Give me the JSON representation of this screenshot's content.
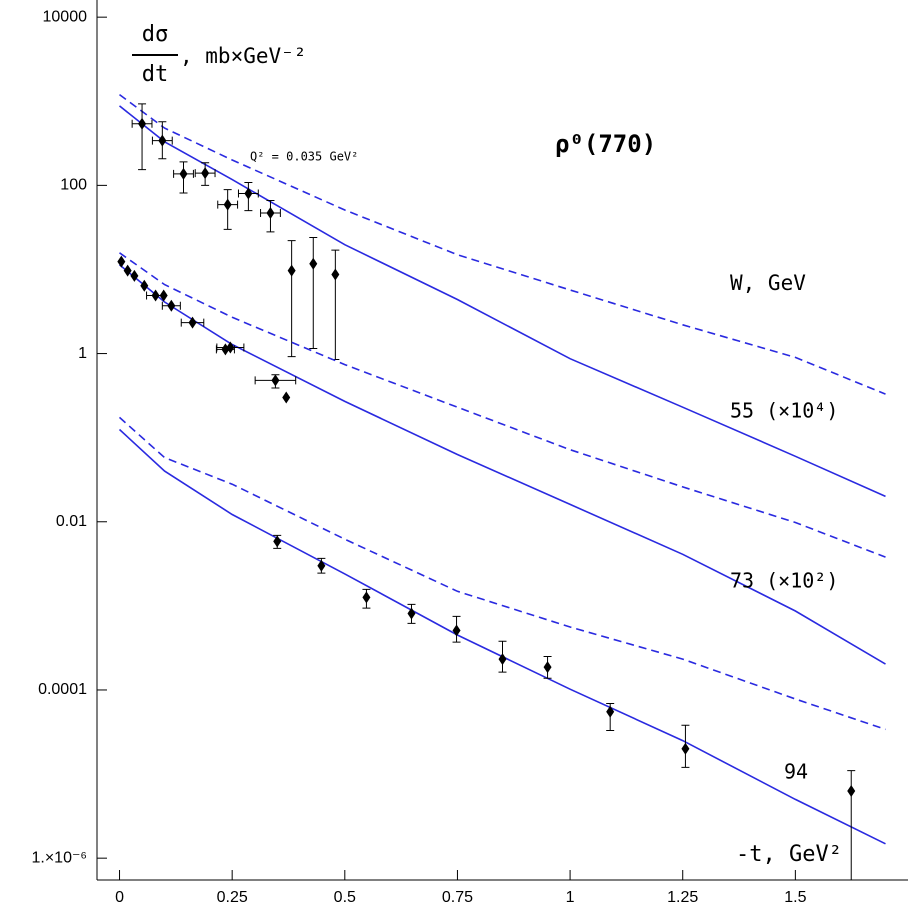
{
  "chart_data": {
    "type": "scatter",
    "title": "ρ⁰(770)",
    "ylabel_numerator": "dσ",
    "ylabel_denominator": "dt",
    "ylabel_unit": ", mb×GeV⁻²",
    "xlabel": "-t, GeV²",
    "annotation": "Q² = 0.035 GeV²",
    "legend_title": "W, GeV",
    "ylog": true,
    "xlim": [
      -0.05,
      1.75
    ],
    "ylim": [
      5.5e-07,
      16000
    ],
    "xticks": [
      0,
      0.25,
      0.5,
      0.75,
      1,
      1.25,
      1.5
    ],
    "yticks": [
      10000,
      100,
      1,
      0.01,
      0.0001,
      {
        "value": 1e-06,
        "label": "1.×10⁻⁶"
      }
    ],
    "curve_x": [
      0,
      0.1,
      0.25,
      0.5,
      0.75,
      1,
      1.25,
      1.5,
      1.7
    ],
    "series": [
      {
        "name": "55 (×10⁴)",
        "color": "#2a2ae0",
        "x": [
          0.05,
          0.095,
          0.142,
          0.19,
          0.24,
          0.286,
          0.335,
          0.382,
          0.43,
          0.479
        ],
        "values": [
          540,
          340,
          137,
          140,
          59,
          80,
          47,
          9.7,
          11.7,
          8.7
        ],
        "ylow": [
          154,
          207,
          81,
          100,
          30,
          50,
          28,
          0.92,
          1.15,
          0.85
        ],
        "yhigh": [
          930,
          570,
          190,
          186,
          89,
          108,
          66,
          22,
          24,
          17
        ],
        "xerr": [
          0.022,
          0.022,
          0.022,
          0.022,
          0.022,
          0.022,
          0.022,
          null,
          null,
          null
        ],
        "solid": [
          881,
          330,
          117,
          19.7,
          4.4,
          0.87,
          0.23,
          0.06,
          0.02
        ],
        "dashed": [
          1200,
          480,
          200,
          51,
          15,
          5.7,
          2.2,
          0.9,
          0.33
        ]
      },
      {
        "name": "73 (×10²)",
        "color": "#2a2ae0",
        "x": [
          0.004,
          0.018,
          0.033,
          0.055,
          0.08,
          0.098,
          0.115,
          0.162,
          0.235,
          0.246,
          0.346,
          0.37
        ],
        "values": [
          12.4,
          9.7,
          8.4,
          6.4,
          4.9,
          4.9,
          3.7,
          2.33,
          1.12,
          1.18,
          0.48,
          0.3
        ],
        "ylow": [
          null,
          null,
          null,
          null,
          null,
          null,
          null,
          null,
          null,
          null,
          0.39,
          null
        ],
        "yhigh": [
          null,
          null,
          null,
          null,
          null,
          null,
          null,
          null,
          null,
          null,
          0.56,
          null
        ],
        "xerr": [
          null,
          null,
          null,
          null,
          0.02,
          null,
          0.02,
          0.025,
          0.02,
          0.03,
          0.045,
          null
        ],
        "solid": [
          11.4,
          4.1,
          1.28,
          0.27,
          0.063,
          0.0161,
          0.0041,
          0.00087,
          0.000203
        ],
        "dashed": [
          15.8,
          6.6,
          2.7,
          0.74,
          0.23,
          0.072,
          0.026,
          0.0098,
          0.0038
        ]
      },
      {
        "name": "94",
        "color": "#2a2ae0",
        "x": [
          0.35,
          0.448,
          0.548,
          0.648,
          0.748,
          0.85,
          0.95,
          1.089,
          1.256,
          1.624
        ],
        "values": [
          0.00585,
          0.003,
          0.00126,
          0.00081,
          0.00051,
          0.000233,
          0.000187,
          5.5e-05,
          2e-05,
          6.3e-06
        ],
        "ylow": [
          0.00483,
          0.00245,
          0.00094,
          0.00062,
          0.00037,
          0.000163,
          0.000138,
          3.3e-05,
          1.2e-05,
          5.5e-07
        ],
        "yhigh": [
          0.0069,
          0.00367,
          0.00157,
          0.00104,
          0.00075,
          0.00038,
          0.00025,
          6.9e-05,
          3.8e-05,
          1.1e-05
        ],
        "solid": [
          0.125,
          0.04,
          0.0122,
          0.0024,
          0.00045,
          0.000102,
          2.5e-05,
          5e-06,
          1.48e-06
        ],
        "dashed": [
          0.174,
          0.058,
          0.028,
          0.0062,
          0.00149,
          0.00056,
          0.000233,
          7.8e-05,
          3.4e-05
        ]
      }
    ]
  }
}
